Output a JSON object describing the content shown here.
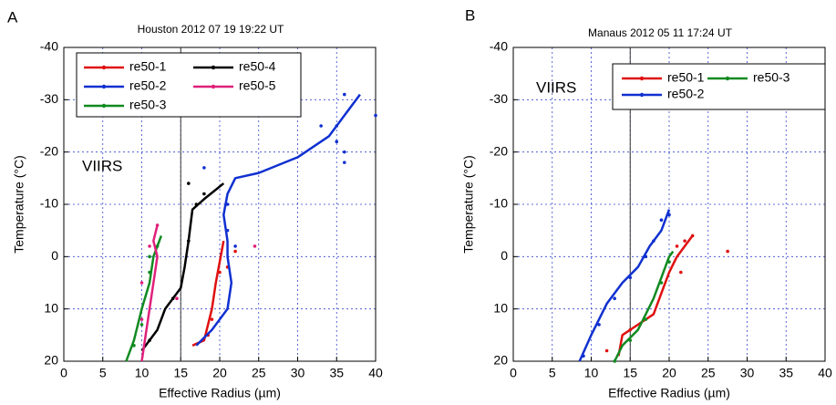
{
  "chart_data": [
    {
      "type": "line",
      "panel_label": "A",
      "title": "Houston 2012 07 19 19:22 UT",
      "annotation": "VIIRS",
      "xlabel": "Effective Radius (µm)",
      "ylabel": "Temperature (°C)",
      "xlim": [
        0,
        40
      ],
      "ylim": [
        20,
        -40
      ],
      "xticks": [
        0,
        5,
        10,
        15,
        20,
        25,
        30,
        35,
        40
      ],
      "yticks": [
        20,
        10,
        0,
        -10,
        -20,
        -30,
        -40
      ],
      "grid": true,
      "vline": 15,
      "series": [
        {
          "name": "re50-1",
          "color": "#e01010",
          "x": [
            16.5,
            18,
            19,
            19.5,
            20.5
          ],
          "values": [
            17,
            16,
            10,
            5,
            -3
          ],
          "points": {
            "x": [
              20,
              21,
              19,
              18.5,
              22
            ],
            "y": [
              3,
              2,
              12,
              15,
              -1
            ]
          }
        },
        {
          "name": "re50-2",
          "color": "#1030d0",
          "x": [
            17,
            19,
            21,
            21.5,
            21,
            21,
            20.5,
            21,
            22,
            25,
            30,
            34,
            36,
            38
          ],
          "values": [
            17,
            14,
            10,
            5,
            0,
            -3,
            -8,
            -12,
            -15,
            -16,
            -19,
            -23,
            -27,
            -31
          ],
          "points": {
            "x": [
              21,
              22,
              35,
              36,
              36,
              40,
              33,
              18,
              21,
              35,
              36
            ],
            "y": [
              -5,
              -2,
              -25,
              -20,
              -31,
              -27,
              -25,
              -17,
              -10,
              -22,
              -18
            ]
          }
        },
        {
          "name": "re50-3",
          "color": "#108a20",
          "x": [
            8,
            9,
            10,
            11,
            11.5,
            12.5
          ],
          "values": [
            20,
            16,
            10,
            5,
            0,
            -4
          ],
          "points": {
            "x": [
              9,
              10,
              11,
              12,
              11
            ],
            "y": [
              17,
              13,
              3,
              -2,
              0
            ]
          }
        },
        {
          "name": "re50-4",
          "color": "#000000",
          "x": [
            10,
            12,
            13,
            15,
            15.5,
            16,
            16.5,
            18,
            20.5
          ],
          "values": [
            18,
            14,
            10,
            6,
            2,
            -3,
            -9,
            -11,
            -14
          ],
          "points": {
            "x": [
              11,
              14,
              16,
              17,
              16,
              18
            ],
            "y": [
              16,
              8,
              -3,
              -10,
              -14,
              -12
            ]
          }
        },
        {
          "name": "re50-5",
          "color": "#e0207a",
          "x": [
            10,
            10.5,
            11,
            11.5,
            12,
            11.5,
            12
          ],
          "values": [
            20,
            15,
            10,
            5,
            0,
            -3,
            -6
          ],
          "points": {
            "x": [
              12,
              11,
              10,
              10,
              14.5,
              24.5
            ],
            "y": [
              -6,
              -2,
              12,
              5,
              8,
              -2
            ]
          }
        }
      ]
    },
    {
      "type": "line",
      "panel_label": "B",
      "title": "Manaus 2012 05 11 17:24 UT",
      "annotation": "VIIRS",
      "xlabel": "Effective Radius (µm)",
      "ylabel": "Temperature (°C)",
      "xlim": [
        0,
        40
      ],
      "ylim": [
        20,
        -40
      ],
      "xticks": [
        0,
        5,
        10,
        15,
        20,
        25,
        30,
        35,
        40
      ],
      "yticks": [
        20,
        10,
        0,
        -10,
        -20,
        -30,
        -40
      ],
      "grid": true,
      "vline": 15,
      "series": [
        {
          "name": "re50-1",
          "color": "#e01010",
          "x": [
            13.5,
            14,
            16,
            18,
            19,
            20,
            21,
            22,
            23
          ],
          "values": [
            19,
            15,
            13,
            11,
            7,
            3,
            0,
            -2,
            -4
          ],
          "points": {
            "x": [
              12,
              15,
              21,
              23,
              27.5,
              22,
              21.5
            ],
            "y": [
              18,
              14,
              -2,
              -4,
              -1,
              -3,
              3
            ]
          }
        },
        {
          "name": "re50-2",
          "color": "#1030d0",
          "x": [
            8.5,
            10,
            11,
            12,
            14,
            16,
            17.5,
            19,
            20
          ],
          "values": [
            20,
            15,
            12,
            9,
            5,
            2,
            -2,
            -5,
            -9
          ],
          "points": {
            "x": [
              9,
              11,
              13,
              15,
              17,
              18,
              19,
              20
            ],
            "y": [
              19,
              13,
              8,
              4,
              0,
              -3,
              -7,
              -8
            ]
          }
        },
        {
          "name": "re50-3",
          "color": "#108a20",
          "x": [
            13,
            14,
            16,
            17,
            18,
            19,
            20,
            20.5
          ],
          "values": [
            20,
            17,
            14,
            11,
            8,
            4,
            0,
            -1
          ],
          "points": {
            "x": [
              13,
              15,
              17,
              19,
              20
            ],
            "y": [
              20,
              16,
              12,
              5,
              1
            ]
          }
        }
      ]
    }
  ]
}
